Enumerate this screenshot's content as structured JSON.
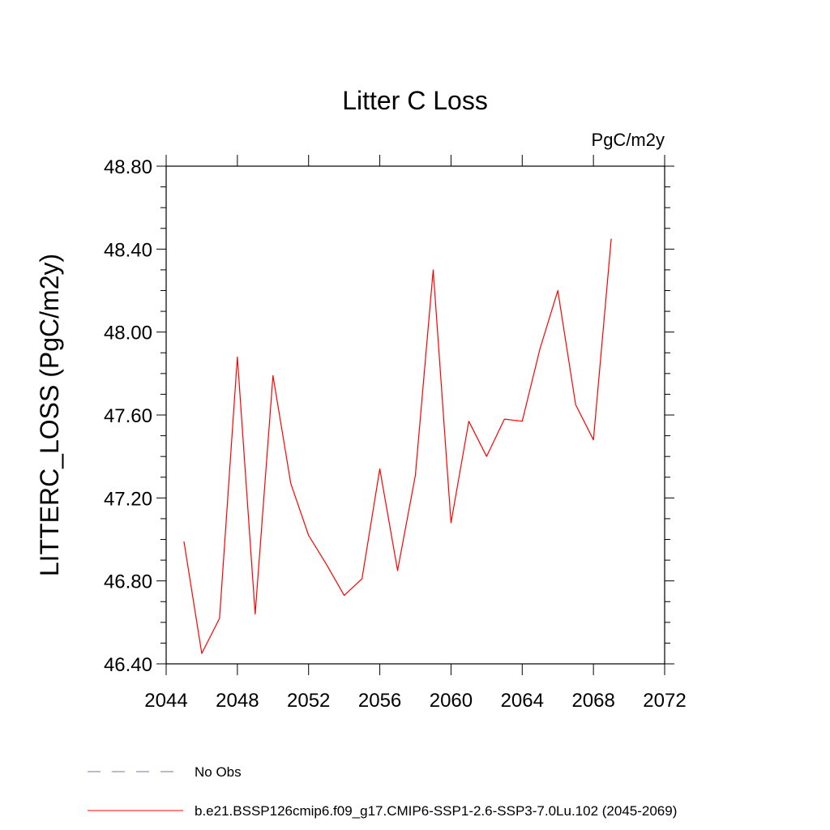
{
  "chart_data": {
    "type": "line",
    "title": "Litter C Loss",
    "units": "PgC/m2y",
    "xlabel": "",
    "ylabel": "LITTERC_LOSS  (PgC/m2y)",
    "xlim": [
      2044,
      2072
    ],
    "ylim": [
      46.4,
      48.8
    ],
    "x_ticks": [
      "2044",
      "2048",
      "2052",
      "2056",
      "2060",
      "2064",
      "2068",
      "2072"
    ],
    "y_ticks": [
      "46.40",
      "46.80",
      "47.20",
      "47.60",
      "48.00",
      "48.40",
      "48.80"
    ],
    "series": [
      {
        "name": "b.e21.BSSP126cmip6.f09_g17.CMIP6-SSP1-2.6-SSP3-7.0Lu.102 (2045-2069)",
        "color": "#ff0000",
        "x": [
          2045,
          2046,
          2047,
          2048,
          2049,
          2050,
          2051,
          2052,
          2053,
          2054,
          2055,
          2056,
          2057,
          2058,
          2059,
          2060,
          2061,
          2062,
          2063,
          2064,
          2065,
          2066,
          2067,
          2068,
          2069
        ],
        "y": [
          46.99,
          46.45,
          46.62,
          47.88,
          46.64,
          47.79,
          47.27,
          47.02,
          46.88,
          46.73,
          46.81,
          47.34,
          46.85,
          47.31,
          48.3,
          47.08,
          47.57,
          47.4,
          47.58,
          47.57,
          47.92,
          48.2,
          47.65,
          47.48,
          48.45
        ]
      }
    ],
    "legend": [
      {
        "label": "No Obs",
        "style": "dashed",
        "color": "#7b6fb0"
      },
      {
        "label": "b.e21.BSSP126cmip6.f09_g17.CMIP6-SSP1-2.6-SSP3-7.0Lu.102 (2045-2069)",
        "style": "solid",
        "color": "#ff0000"
      }
    ]
  }
}
